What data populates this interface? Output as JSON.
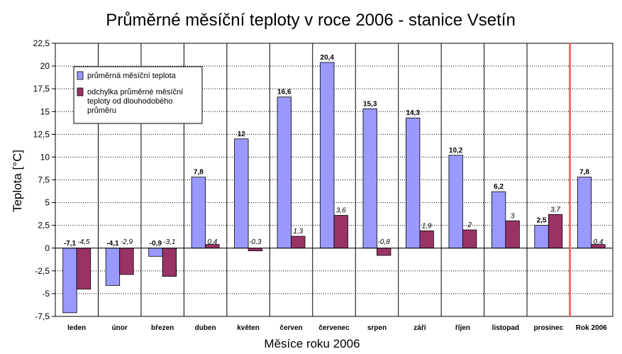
{
  "chart_data": {
    "type": "bar",
    "title": "Průměrné měsíční teploty v roce 2006 - stanice Vsetín",
    "xlabel": "Měsíce roku 2006",
    "ylabel": "Teplota [°C]",
    "ylim": [
      -7.5,
      22.5
    ],
    "yticks": [
      "22,5",
      "20",
      "17,5",
      "15",
      "12,5",
      "10",
      "7,5",
      "5",
      "2,5",
      "0",
      "-2,5",
      "-5",
      "-7,5"
    ],
    "categories": [
      "leden",
      "únor",
      "březen",
      "duben",
      "květen",
      "červen",
      "červenec",
      "srpen",
      "září",
      "říjen",
      "listopad",
      "prosinec",
      "Rok 2006"
    ],
    "series": [
      {
        "name": "průměrná měsíční teplota",
        "color": "#9999ff",
        "values": [
          -7.1,
          -4.1,
          -0.9,
          7.8,
          12,
          16.6,
          20.4,
          15.3,
          14.3,
          10.2,
          6.2,
          2.5,
          7.8
        ],
        "labels": [
          "-7,1",
          "-4,1",
          "-0,9",
          "7,8",
          "12",
          "16,6",
          "20,4",
          "15,3",
          "14,3",
          "10,2",
          "6,2",
          "2,5",
          "7,8"
        ]
      },
      {
        "name": "odchylka průměrné měsíční teploty od dlouhodobého průměru",
        "color": "#993366",
        "values": [
          -4.5,
          -2.9,
          -3.1,
          0.4,
          -0.3,
          1.3,
          3.6,
          -0.8,
          1.9,
          2,
          3,
          3.7,
          0.4
        ],
        "labels": [
          "-4,5",
          "-2,9",
          "-3,1",
          "0,4",
          "-0,3",
          "1,3",
          "3,6",
          "-0,8",
          "1,9",
          "2",
          "3",
          "3,7",
          "0,4"
        ]
      }
    ],
    "legend": {
      "placement": "top-left",
      "entries": [
        [
          "průměrná měsíční teplota"
        ],
        [
          "odchylka průměrné měsíční",
          "teploty od dlouhodobého",
          "průměru"
        ]
      ]
    },
    "grid": true,
    "separator_color": "#ff6666",
    "separator_before_category": "Rok 2006"
  }
}
